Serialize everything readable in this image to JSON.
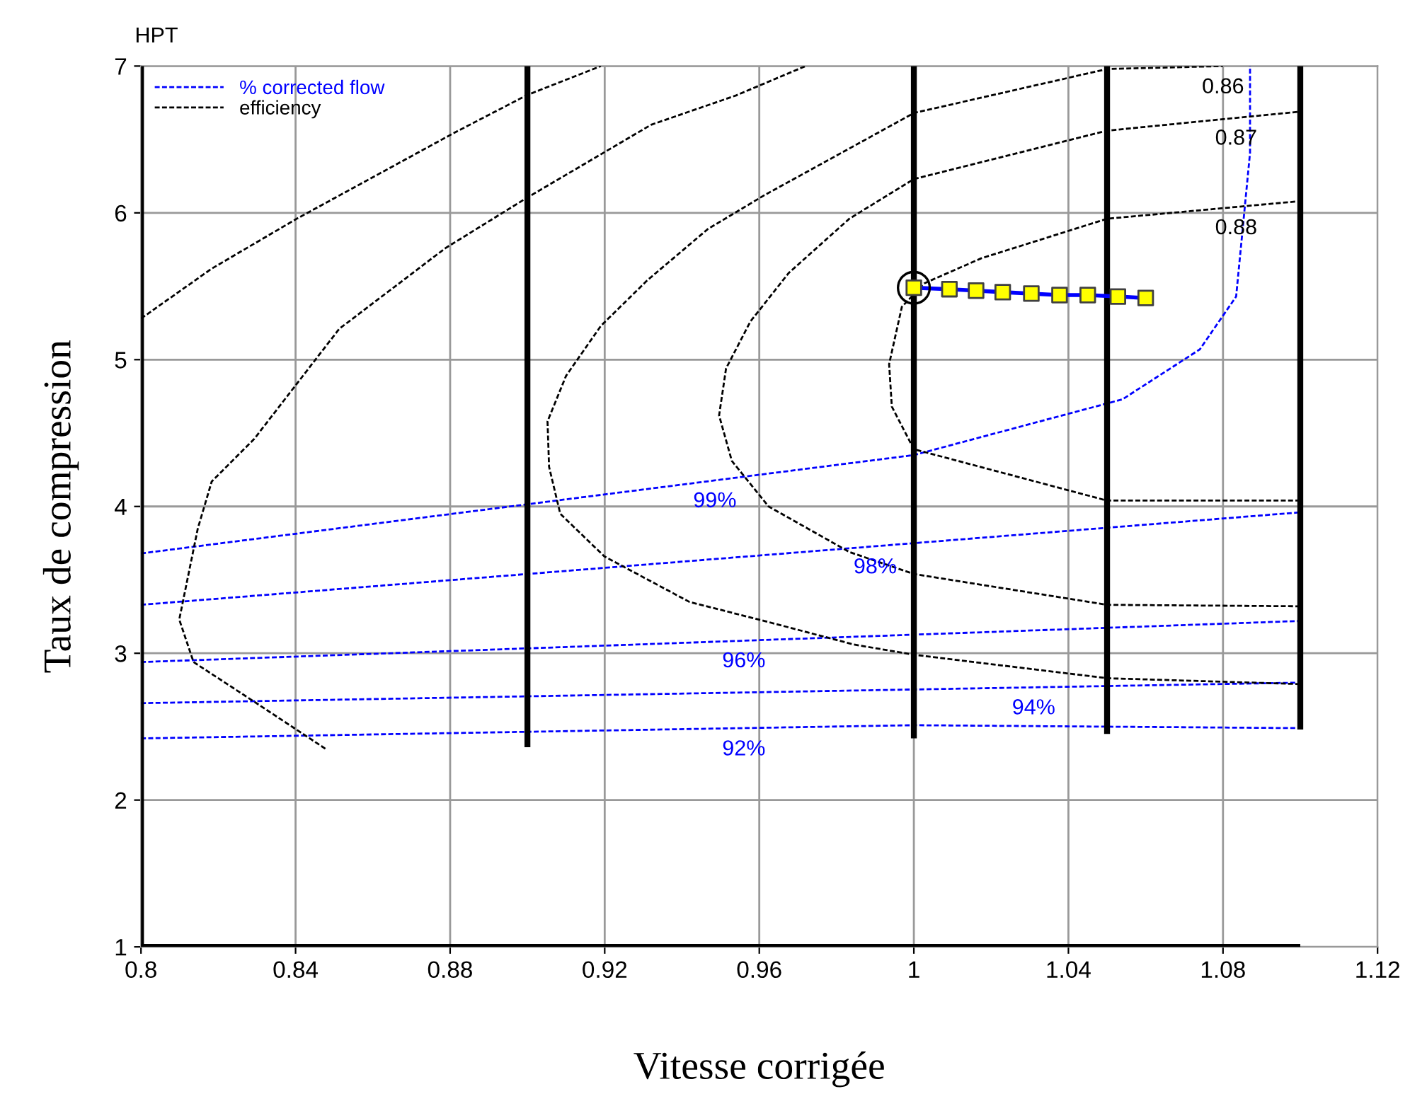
{
  "chart_data": {
    "type": "line",
    "title": "HPT",
    "xlabel": "Vitesse corrigée",
    "ylabel": "Taux de compression",
    "xlim": [
      0.8,
      1.12
    ],
    "xticks": [
      0.8,
      0.84,
      0.88,
      0.92,
      0.96,
      1,
      1.04,
      1.08,
      1.12
    ],
    "ylim": [
      1,
      7
    ],
    "yticks": [
      1,
      2,
      3,
      4,
      5,
      6,
      7
    ],
    "grid": true,
    "legend": "top left",
    "series": [
      {
        "name": "% corrected flow",
        "color": "#0000ff",
        "line_style": "dashed",
        "x": [
          0.8,
          1.0,
          1.054,
          1.074,
          1.0834,
          1.087,
          1.087
        ],
        "values": [
          3.68,
          4.35,
          4.73,
          5.07,
          5.43,
          6.41,
          7.0
        ]
      },
      {
        "color": "#0000ff",
        "line_style": "dashed",
        "x": [
          0.8,
          1.1
        ],
        "values": [
          3.33,
          3.96
        ]
      },
      {
        "color": "#0000ff",
        "line_style": "dashed",
        "x": [
          0.8,
          1.1
        ],
        "values": [
          2.94,
          3.22
        ]
      },
      {
        "color": "#0000ff",
        "line_style": "dashed",
        "x": [
          0.8,
          1.1
        ],
        "values": [
          2.66,
          2.8
        ]
      },
      {
        "color": "#0000ff",
        "line_style": "dashed",
        "x": [
          0.8,
          1.0,
          1.1
        ],
        "values": [
          2.42,
          2.51,
          2.49
        ]
      },
      {
        "name": "efficiency",
        "color": "#000000",
        "line_style": "dashed",
        "x": [
          0.8,
          0.8183,
          0.8403,
          0.8807,
          0.8997,
          0.919
        ],
        "values": [
          5.28,
          5.62,
          5.96,
          6.54,
          6.8,
          7.0
        ]
      },
      {
        "color": "#000000",
        "line_style": "dashed",
        "x": [
          0.8477,
          0.8293,
          0.8136,
          0.8099,
          0.8147,
          0.8183,
          0.8293,
          0.8513,
          0.8788,
          0.8997,
          0.932,
          0.954,
          0.972
        ],
        "values": [
          2.35,
          2.67,
          2.94,
          3.23,
          3.85,
          4.17,
          4.46,
          5.21,
          5.76,
          6.1,
          6.6,
          6.8,
          7.0
        ]
      },
      {
        "color": "#000000",
        "line_style": "dashed",
        "x": [
          1.1,
          1.05,
          1.0,
          0.9844,
          0.9613,
          0.9419,
          0.9199,
          0.9085,
          0.9056,
          0.9052,
          0.91,
          0.919,
          0.931,
          0.9467,
          0.9613,
          1.0,
          1.05,
          1.08
        ],
        "values": [
          2.79,
          2.83,
          2.99,
          3.06,
          3.22,
          3.35,
          3.66,
          3.95,
          4.27,
          4.58,
          4.89,
          5.23,
          5.54,
          5.89,
          6.12,
          6.68,
          6.98,
          7.0
        ]
      },
      {
        "color": "#000000",
        "line_style": "dashed",
        "x": [
          1.1,
          1.05,
          1.0,
          0.9833,
          0.9624,
          0.9529,
          0.9496,
          0.9514,
          0.9577,
          0.9676,
          0.9833,
          1.0,
          1.05,
          1.1
        ],
        "values": [
          3.32,
          3.33,
          3.54,
          3.69,
          4.0,
          4.31,
          4.62,
          4.94,
          5.26,
          5.59,
          5.96,
          6.23,
          6.56,
          6.69
        ]
      },
      {
        "color": "#000000",
        "line_style": "dashed",
        "x": [
          1.1,
          1.05,
          1.0,
          0.9943,
          0.9936,
          0.9969,
          1.0027,
          1.0174,
          1.05,
          1.1
        ],
        "values": [
          4.04,
          4.04,
          4.39,
          4.68,
          4.97,
          5.36,
          5.52,
          5.69,
          5.96,
          6.08
        ]
      },
      {
        "color": "#000000",
        "line_style": "solid",
        "x": [
          0.8,
          0.8
        ],
        "values": [
          1,
          7
        ]
      },
      {
        "color": "#000000",
        "line_style": "solid",
        "x": [
          0.8,
          1.1
        ],
        "values": [
          1,
          1
        ]
      },
      {
        "color": "#000000",
        "line_style": "solid",
        "x": [
          0.9,
          0.9
        ],
        "values": [
          2.36,
          7
        ]
      },
      {
        "color": "#000000",
        "line_style": "solid",
        "x": [
          1.0,
          1.0
        ],
        "values": [
          2.42,
          7
        ]
      },
      {
        "color": "#000000",
        "line_style": "solid",
        "x": [
          1.05,
          1.05
        ],
        "values": [
          2.45,
          7
        ]
      },
      {
        "color": "#000000",
        "line_style": "solid",
        "x": [
          1.1,
          1.1
        ],
        "values": [
          2.48,
          7
        ]
      },
      {
        "color": "#0000ff",
        "line_style": "solid",
        "marker": "square",
        "colors": [
          "#ffff00",
          "#ffff00",
          "#ffff00",
          "#ffff00",
          "#ffff00",
          "#ffff00",
          "#ffff00",
          "#ffff00",
          "#ffff00"
        ],
        "x": [
          1.0,
          1.0092,
          1.0161,
          1.023,
          1.0304,
          1.0377,
          1.045,
          1.0528,
          1.06
        ],
        "values": [
          5.49,
          5.48,
          5.47,
          5.46,
          5.45,
          5.44,
          5.44,
          5.43,
          5.42
        ]
      },
      {
        "type": "scatter",
        "marker": "circle",
        "color": "#000000",
        "x": [
          1.0
        ],
        "values": [
          5.49
        ]
      }
    ],
    "annotations": [
      {
        "text": "99%",
        "x": 0.9485,
        "y": 4.18
      },
      {
        "text": "98%",
        "x": 0.99,
        "y": 3.73
      },
      {
        "text": "96%",
        "x": 0.956,
        "y": 3.09
      },
      {
        "text": "94%",
        "x": 1.031,
        "y": 2.77
      },
      {
        "text": "92%",
        "x": 0.956,
        "y": 2.49
      },
      {
        "text": "0.88",
        "x": 1.0834,
        "y": 6.04
      },
      {
        "text": "0.87",
        "x": 1.0834,
        "y": 6.65
      },
      {
        "text": "0.86",
        "x": 1.08,
        "y": 7.0
      }
    ]
  }
}
